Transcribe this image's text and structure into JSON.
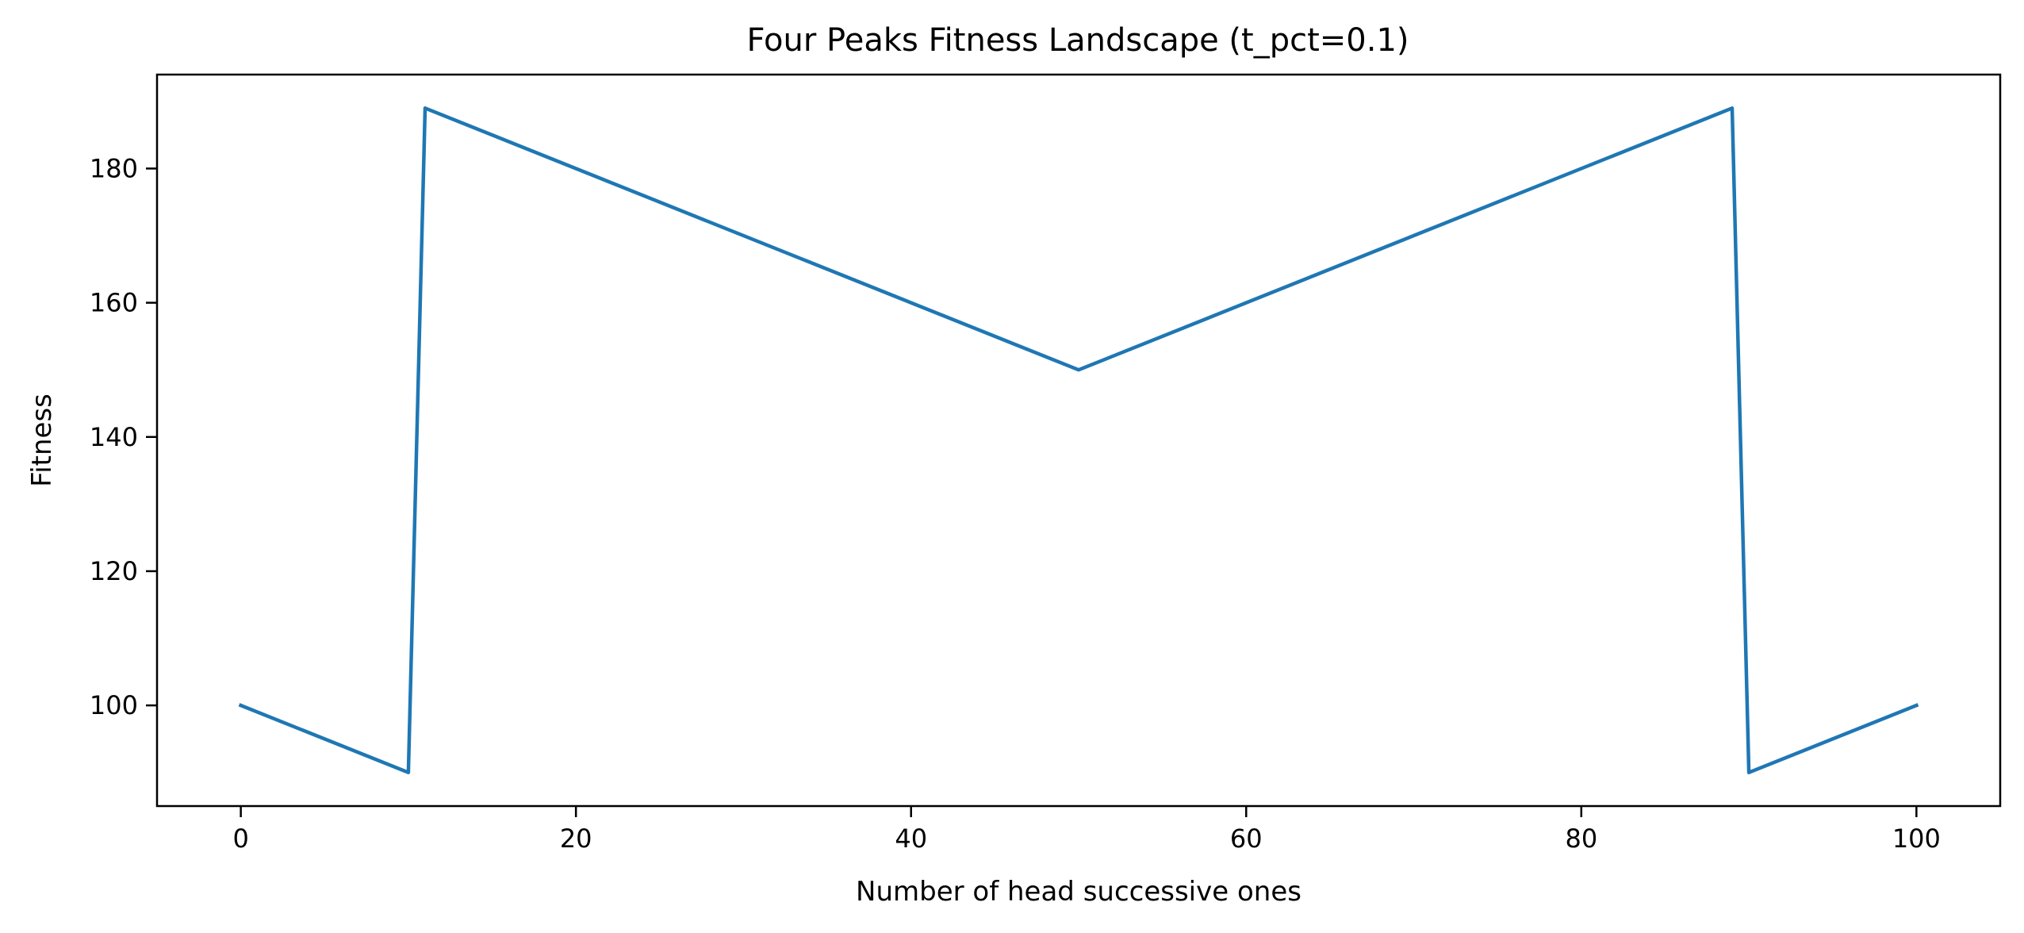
{
  "chart_data": {
    "type": "line",
    "title": "Four Peaks Fitness Landscape (t_pct=0.1)",
    "xlabel": "Number of head successive ones",
    "ylabel": "Fitness",
    "xlim": [
      -5,
      105
    ],
    "ylim": [
      85,
      194
    ],
    "xticks": [
      0,
      20,
      40,
      60,
      80,
      100
    ],
    "yticks": [
      100,
      120,
      140,
      160,
      180
    ],
    "grid": false,
    "line_color": "#1f77b4",
    "series": [
      {
        "x": [
          0,
          10,
          11,
          50,
          89,
          90,
          100
        ],
        "y": [
          100,
          90,
          189,
          150,
          189,
          90,
          100
        ]
      }
    ]
  }
}
